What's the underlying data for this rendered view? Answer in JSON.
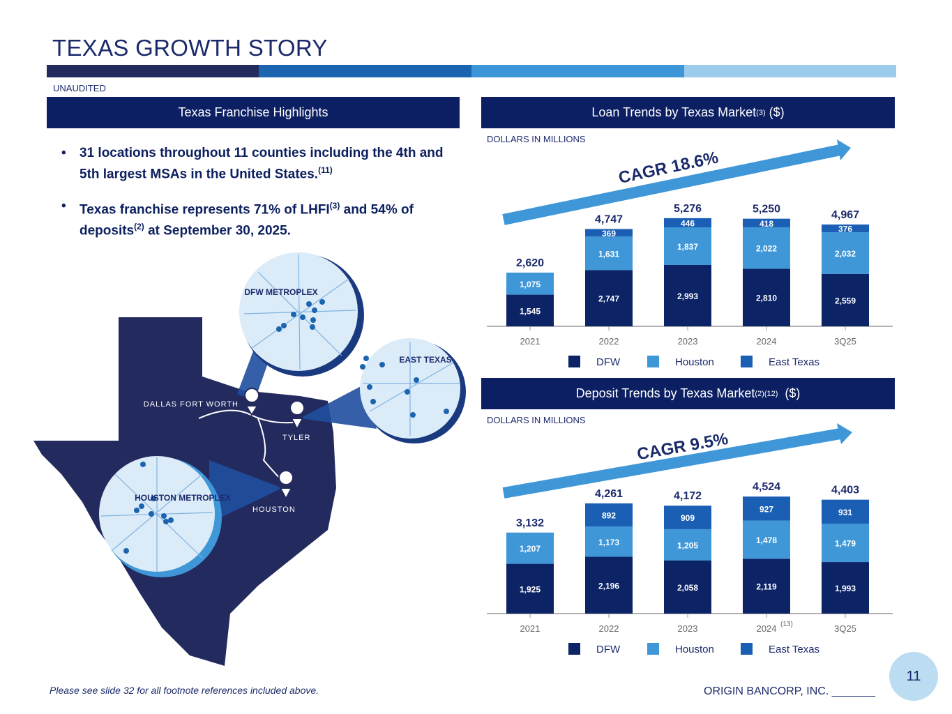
{
  "title": "TEXAS GROWTH STORY",
  "unaudited": "UNAUDITED",
  "colors": {
    "navy": "#0c1f63",
    "dfw": "#0c2366",
    "houston": "#3f97d8",
    "east_texas": "#1a5fb4",
    "band": [
      "#232a5e",
      "#1a64b0",
      "#3d96d8",
      "#9ccbeb"
    ]
  },
  "left_panel": {
    "header": "Texas Franchise Highlights",
    "bullets": [
      {
        "text": "31 locations throughout 11 counties including the 4th and 5th largest MSAs in the United States.",
        "sup": "(11)"
      },
      {
        "parts": [
          "Texas franchise represents 71% of LHFI",
          "(3)",
          " and 54% of deposits",
          "(2)",
          " at September 30, 2025."
        ]
      }
    ],
    "map_labels": {
      "dfw_circle": "DFW METROPLEX",
      "east_circle": "EAST TEXAS",
      "houston_circle": "HOUSTON METROPLEX",
      "dallas": "DALLAS FORT WORTH",
      "tyler": "TYLER",
      "houston": "HOUSTON"
    }
  },
  "loan_panel": {
    "header": "Loan Trends by Texas Market",
    "header_sup": "(3)",
    "header_unit": " ($)",
    "units": "DOLLARS IN MILLIONS",
    "cagr": "CAGR 18.6%"
  },
  "deposit_panel": {
    "header": "Deposit Trends by Texas Market",
    "header_sup": "(2)(12)",
    "header_unit": "  ($)",
    "units": "DOLLARS IN MILLIONS",
    "cagr": "CAGR 9.5%"
  },
  "chart_data": [
    {
      "type": "bar",
      "stacked": true,
      "title": "Loan Trends by Texas Market (3) ($)",
      "ylabel": "DOLLARS IN MILLIONS",
      "categories": [
        "2021",
        "2022",
        "2023",
        "2024",
        "3Q25"
      ],
      "category_sups": [
        "",
        "",
        "",
        "",
        ""
      ],
      "series": [
        {
          "name": "DFW",
          "values": [
            1545,
            2747,
            2993,
            2810,
            2559
          ]
        },
        {
          "name": "Houston",
          "values": [
            1075,
            1631,
            1837,
            2022,
            2032
          ]
        },
        {
          "name": "East Texas",
          "values": [
            0,
            369,
            446,
            418,
            376
          ]
        }
      ],
      "totals": [
        "2,620",
        "4,747",
        "5,276",
        "5,250",
        "4,967"
      ],
      "legend": "bottom"
    },
    {
      "type": "bar",
      "stacked": true,
      "title": "Deposit Trends by Texas Market (2)(12) ($)",
      "ylabel": "DOLLARS IN MILLIONS",
      "categories": [
        "2021",
        "2022",
        "2023",
        "2024",
        "3Q25"
      ],
      "category_sups": [
        "",
        "",
        "",
        "(13)",
        ""
      ],
      "series": [
        {
          "name": "DFW",
          "values": [
            1925,
            2196,
            2058,
            2119,
            1993
          ]
        },
        {
          "name": "Houston",
          "values": [
            1207,
            1173,
            1205,
            1478,
            1479
          ]
        },
        {
          "name": "East Texas",
          "values": [
            0,
            892,
            909,
            927,
            931
          ]
        }
      ],
      "totals": [
        "3,132",
        "4,261",
        "4,172",
        "4,524",
        "4,403"
      ],
      "legend": "bottom"
    }
  ],
  "footer": {
    "note": "Please see slide 32 for all footnote references included above.",
    "company": "ORIGIN BANCORP, INC. _______",
    "page": "11"
  }
}
